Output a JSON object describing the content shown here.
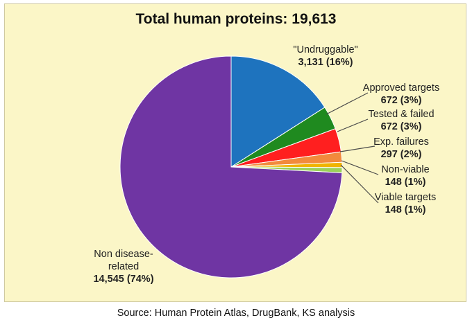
{
  "chart_data": {
    "type": "pie",
    "title": "Total human proteins: 19,613",
    "source": "Source: Human  Protein Atlas, DrugBank, KS analysis",
    "slices": [
      {
        "label": "\"Undruggable\"",
        "value_label": "3,131 (16%)",
        "value": 3131,
        "color": "#1e73be"
      },
      {
        "label": "Approved targets",
        "value_label": "672 (3%)",
        "value": 672,
        "color": "#1f8a1f"
      },
      {
        "label": "Tested & failed",
        "value_label": "672 (3%)",
        "value": 672,
        "color": "#ff1f1f"
      },
      {
        "label": "Exp. failures",
        "value_label": "297 (2%)",
        "value": 297,
        "color": "#f28a3c"
      },
      {
        "label": "Non-viable",
        "value_label": "148 (1%)",
        "value": 148,
        "color": "#f0b400"
      },
      {
        "label": "Viable targets",
        "value_label": "148 (1%)",
        "value": 148,
        "color": "#9bd15a"
      },
      {
        "label": "Non disease-related",
        "label_lines": [
          "Non disease-",
          "related"
        ],
        "value_label": "14,545 (74%)",
        "value": 14545,
        "color": "#6f35a3"
      }
    ]
  }
}
